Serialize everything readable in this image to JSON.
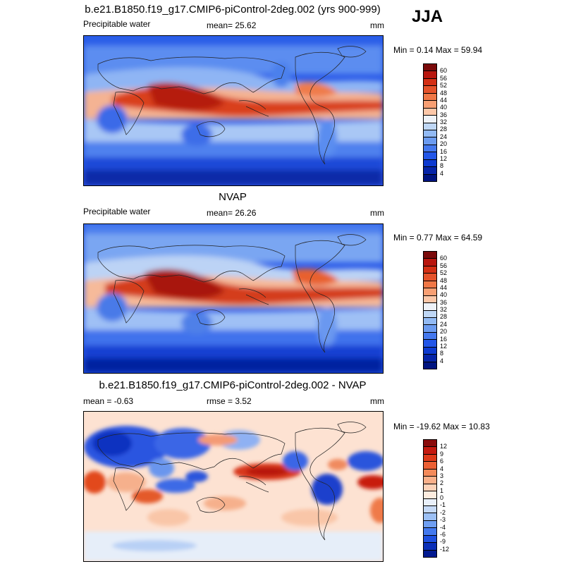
{
  "season": "JJA",
  "panels": [
    {
      "title": "b.e21.B1850.f19_g17.CMIP6-piControl-2deg.002 (yrs 900-999)",
      "left_label": "Precipitable water",
      "center_label": "mean=  25.62",
      "units": "mm",
      "minmax": "Min =  0.14 Max =  59.94",
      "colorbar": {
        "labels": [
          "60",
          "56",
          "52",
          "48",
          "44",
          "40",
          "36",
          "32",
          "28",
          "24",
          "20",
          "16",
          "12",
          "8",
          "4"
        ],
        "colors": [
          "#7a0a0a",
          "#b8160e",
          "#d42f14",
          "#e5522a",
          "#f07746",
          "#f89f73",
          "#fcc7a8",
          "#eef2f8",
          "#bfd7f5",
          "#92baf4",
          "#6b9bf0",
          "#4478ee",
          "#2256e8",
          "#0d3ad0",
          "#0624a8",
          "#001480"
        ]
      }
    },
    {
      "title": "NVAP",
      "left_label": "Precipitable water",
      "center_label": "mean=  26.26",
      "units": "mm",
      "minmax": "Min =  0.77 Max =  64.59",
      "colorbar": {
        "labels": [
          "60",
          "56",
          "52",
          "48",
          "44",
          "40",
          "36",
          "32",
          "28",
          "24",
          "20",
          "16",
          "12",
          "8",
          "4"
        ],
        "colors": [
          "#7a0a0a",
          "#b8160e",
          "#d42f14",
          "#e5522a",
          "#f07746",
          "#f89f73",
          "#fcc7a8",
          "#eef2f8",
          "#bfd7f5",
          "#92baf4",
          "#6b9bf0",
          "#4478ee",
          "#2256e8",
          "#0d3ad0",
          "#0624a8",
          "#001480"
        ]
      }
    },
    {
      "title": "b.e21.B1850.f19_g17.CMIP6-piControl-2deg.002 - NVAP",
      "left_label": "mean =  -0.63",
      "center_label": "rmse =   3.52",
      "units": "mm",
      "minmax": "Min = -19.62 Max =  10.83",
      "colorbar": {
        "labels": [
          "12",
          "9",
          "6",
          "4",
          "3",
          "2",
          "1",
          "0",
          "-1",
          "-2",
          "-3",
          "-4",
          "-6",
          "-9",
          "-12"
        ],
        "colors": [
          "#8a0c0c",
          "#c41a10",
          "#de3a1a",
          "#ec6034",
          "#f38a5a",
          "#f9b08a",
          "#fdd2b8",
          "#fdecdf",
          "#e9f0fa",
          "#c6daf7",
          "#9cc0f5",
          "#6f9ff2",
          "#4379ee",
          "#1e50e0",
          "#0a2fb8",
          "#021a90"
        ]
      }
    }
  ]
}
